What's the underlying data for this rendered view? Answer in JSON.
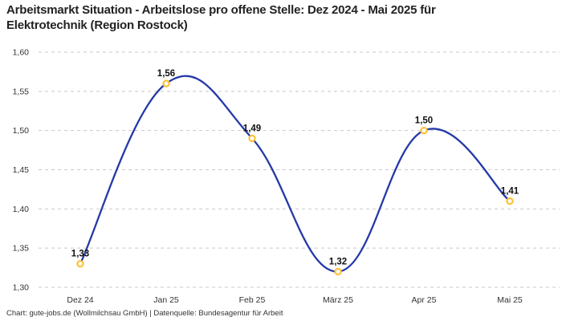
{
  "header": {
    "title_line1": "Arbeitsmarkt Situation - Arbeitslose pro offene Stelle: Dez 2024 - Mai 2025 für",
    "title_line2": "Elektrotechnik (Region Rostock)"
  },
  "footer": {
    "credit": "Chart: gute-jobs.de (Wollmilchsau GmbH) | Datenquelle: Bundesagentur für Arbeit"
  },
  "colors": {
    "line": "#2539a8",
    "marker_stroke": "#fbc237",
    "marker_fill": "#ffffff",
    "grid": "#c9c9c9",
    "axis_text": "#333333",
    "point_label_text": "#111111"
  },
  "chart_data": {
    "type": "line",
    "title": "Arbeitsmarkt Situation - Arbeitslose pro offene Stelle: Dez 2024 - Mai 2025 für Elektrotechnik (Region Rostock)",
    "categories": [
      "Dez 24",
      "Jan 25",
      "Feb 25",
      "März 25",
      "Apr 25",
      "Mai 25"
    ],
    "values": [
      1.33,
      1.56,
      1.49,
      1.32,
      1.5,
      1.41
    ],
    "point_labels": [
      "1,33",
      "1,56",
      "1,49",
      "1,32",
      "1,50",
      "1,41"
    ],
    "series_name": "Arbeitslose pro offene Stelle",
    "xlabel": "",
    "ylabel": "",
    "ylim": [
      1.3,
      1.6
    ],
    "ytick_values": [
      1.3,
      1.35,
      1.4,
      1.45,
      1.5,
      1.55,
      1.6
    ],
    "ytick_labels": [
      "1,30",
      "1,35",
      "1,40",
      "1,45",
      "1,50",
      "1,55",
      "1,60"
    ],
    "grid": "horizontal-dashed",
    "legend": "none",
    "line_smooth": true,
    "point_label_position": "above"
  }
}
